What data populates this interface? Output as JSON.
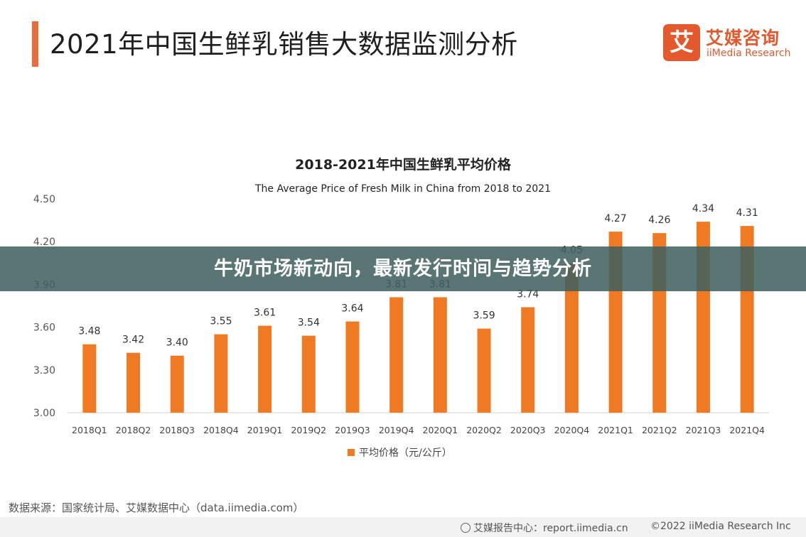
{
  "header": {
    "title": "2021年中国生鲜乳销售大数据监测分析",
    "logo_mark": "艾",
    "logo_cn": "艾媒咨询",
    "logo_en": "iiMedia Research"
  },
  "banner": {
    "text": "牛奶市场新动向，最新发行时间与趋势分析"
  },
  "source": "数据来源：国家统计局、艾媒数据中心（data.iimedia.com）",
  "footer": {
    "report": "艾媒报告中心：report.iimedia.cn",
    "copyright": "©2022  iiMedia Research  Inc"
  },
  "colors": {
    "bar": "#f07a24",
    "accent": "#ea6b3c",
    "banner": "#3e605e"
  },
  "chart_data": {
    "type": "bar",
    "title": "2018-2021年中国生鲜乳平均价格",
    "subtitle": "The Average Price of Fresh Milk in China from 2018 to 2021",
    "categories": [
      "2018Q1",
      "2018Q2",
      "2018Q3",
      "2018Q4",
      "2019Q1",
      "2019Q2",
      "2019Q3",
      "2019Q4",
      "2020Q1",
      "2020Q2",
      "2020Q3",
      "2020Q4",
      "2021Q1",
      "2021Q2",
      "2021Q3",
      "2021Q4"
    ],
    "values": [
      3.48,
      3.42,
      3.4,
      3.55,
      3.61,
      3.54,
      3.64,
      3.81,
      3.81,
      3.59,
      3.74,
      4.05,
      4.27,
      4.26,
      4.34,
      4.31
    ],
    "value_labels": [
      "3.48",
      "3.42",
      "3.40",
      "3.55",
      "3.61",
      "3.54",
      "3.64",
      "3.81",
      "3.81",
      "3.59",
      "3.74",
      "4.05",
      "4.27",
      "4.26",
      "4.34",
      "4.31"
    ],
    "yticks": [
      "3.00",
      "3.30",
      "3.60",
      "3.90",
      "4.20",
      "4.50"
    ],
    "ylim": [
      3.0,
      4.5
    ],
    "legend": "平均价格（元/公斤）",
    "legend_position": "bottom-center",
    "grid": false
  }
}
